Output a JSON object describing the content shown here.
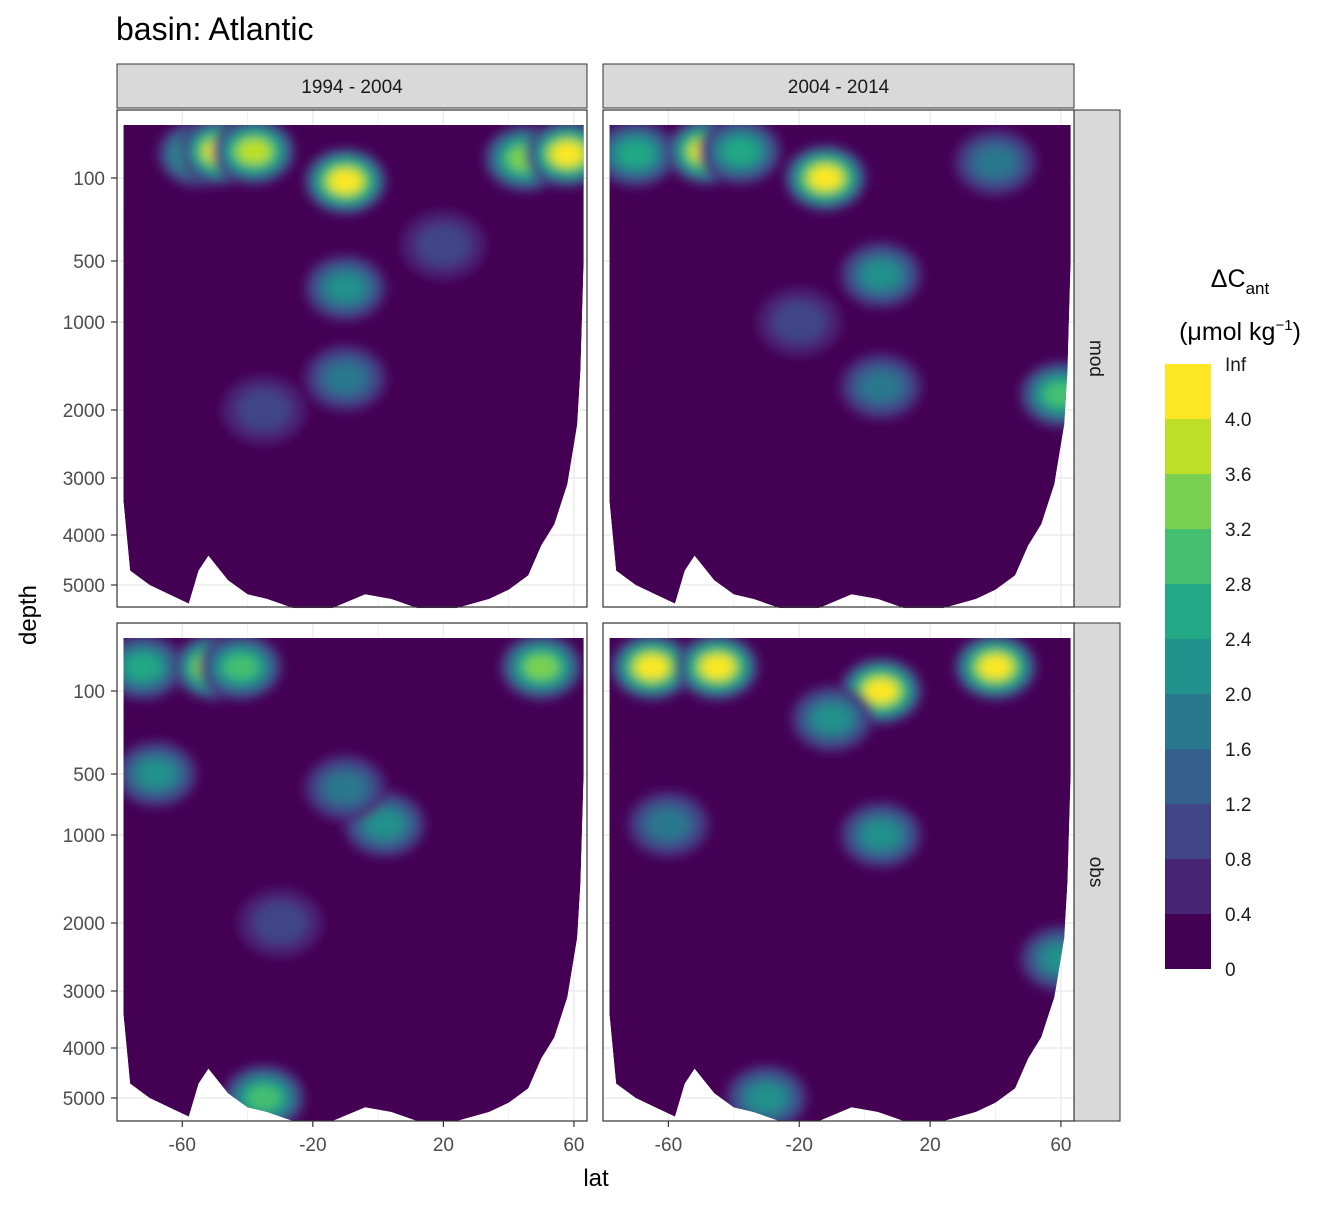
{
  "chart_data": {
    "type": "heatmap",
    "title": "basin: Atlantic",
    "xlabel": "lat",
    "ylabel": "depth",
    "x_ticks": [
      -60,
      -20,
      20,
      60
    ],
    "y_ticks": [
      100,
      500,
      1000,
      2000,
      3000,
      4000,
      5000
    ],
    "y_reversed": true,
    "xlim": [
      -80,
      64
    ],
    "ylim": [
      0,
      5500
    ],
    "grid": true,
    "facet_cols": [
      "1994 - 2004",
      "2004 - 2014"
    ],
    "facet_rows": [
      "mod",
      "obs"
    ],
    "legend": {
      "title_main": "ΔC",
      "title_sub": "ant",
      "unit_text": "(μmol kg",
      "unit_sup": "−1",
      "unit_close": ")",
      "placement": "right",
      "bins": [
        {
          "label": "0",
          "color": "#440154"
        },
        {
          "label": "0.4",
          "color": "#482475"
        },
        {
          "label": "0.8",
          "color": "#414487"
        },
        {
          "label": "1.2",
          "color": "#355f8d"
        },
        {
          "label": "1.6",
          "color": "#2a788e"
        },
        {
          "label": "2.0",
          "color": "#21918c"
        },
        {
          "label": "2.4",
          "color": "#22a884"
        },
        {
          "label": "2.8",
          "color": "#44bf70"
        },
        {
          "label": "3.2",
          "color": "#7ad151"
        },
        {
          "label": "3.6",
          "color": "#bddf26"
        },
        {
          "label": "4.0",
          "color": "#fde725"
        },
        {
          "label": "Inf",
          "color": null
        }
      ]
    },
    "panels": [
      {
        "row": "mod",
        "col": "1994 - 2004",
        "blobs": [
          {
            "x": -55,
            "depth": 30,
            "v": 3.0
          },
          {
            "x": -48,
            "depth": 25,
            "v": 4.2
          },
          {
            "x": -38,
            "depth": 25,
            "v": 3.6
          },
          {
            "x": -10,
            "depth": 110,
            "v": 4.3
          },
          {
            "x": 45,
            "depth": 40,
            "v": 3.2
          },
          {
            "x": 58,
            "depth": 30,
            "v": 4.3
          },
          {
            "x": -10,
            "depth": 700,
            "v": 2.0
          },
          {
            "x": -10,
            "depth": 1600,
            "v": 1.6
          },
          {
            "x": -35,
            "depth": 2000,
            "v": 1.2
          },
          {
            "x": 20,
            "depth": 400,
            "v": 0.8
          }
        ]
      },
      {
        "row": "mod",
        "col": "2004 - 2014",
        "blobs": [
          {
            "x": -70,
            "depth": 30,
            "v": 2.8
          },
          {
            "x": -48,
            "depth": 25,
            "v": 4.0
          },
          {
            "x": -38,
            "depth": 25,
            "v": 2.8
          },
          {
            "x": -12,
            "depth": 100,
            "v": 4.2
          },
          {
            "x": 40,
            "depth": 50,
            "v": 1.6
          },
          {
            "x": 5,
            "depth": 600,
            "v": 2.0
          },
          {
            "x": 5,
            "depth": 1700,
            "v": 1.6
          },
          {
            "x": -20,
            "depth": 1000,
            "v": 0.8
          },
          {
            "x": 60,
            "depth": 1800,
            "v": 3.0
          }
        ]
      },
      {
        "row": "obs",
        "col": "1994 - 2004",
        "blobs": [
          {
            "x": -72,
            "depth": 30,
            "v": 2.8
          },
          {
            "x": -50,
            "depth": 30,
            "v": 4.0
          },
          {
            "x": -42,
            "depth": 30,
            "v": 3.0
          },
          {
            "x": 50,
            "depth": 30,
            "v": 3.2
          },
          {
            "x": -68,
            "depth": 500,
            "v": 2.4
          },
          {
            "x": 2,
            "depth": 900,
            "v": 2.4
          },
          {
            "x": -10,
            "depth": 600,
            "v": 1.6
          },
          {
            "x": -30,
            "depth": 2000,
            "v": 1.2
          },
          {
            "x": -35,
            "depth": 5000,
            "v": 3.0
          }
        ]
      },
      {
        "row": "obs",
        "col": "2004 - 2014",
        "blobs": [
          {
            "x": -65,
            "depth": 30,
            "v": 4.3
          },
          {
            "x": -45,
            "depth": 30,
            "v": 4.0
          },
          {
            "x": 40,
            "depth": 30,
            "v": 4.3
          },
          {
            "x": 5,
            "depth": 100,
            "v": 4.0
          },
          {
            "x": -10,
            "depth": 200,
            "v": 2.4
          },
          {
            "x": 5,
            "depth": 1000,
            "v": 2.4
          },
          {
            "x": -60,
            "depth": 900,
            "v": 1.6
          },
          {
            "x": -30,
            "depth": 5000,
            "v": 2.4
          },
          {
            "x": 60,
            "depth": 2500,
            "v": 2.0
          }
        ]
      }
    ]
  }
}
